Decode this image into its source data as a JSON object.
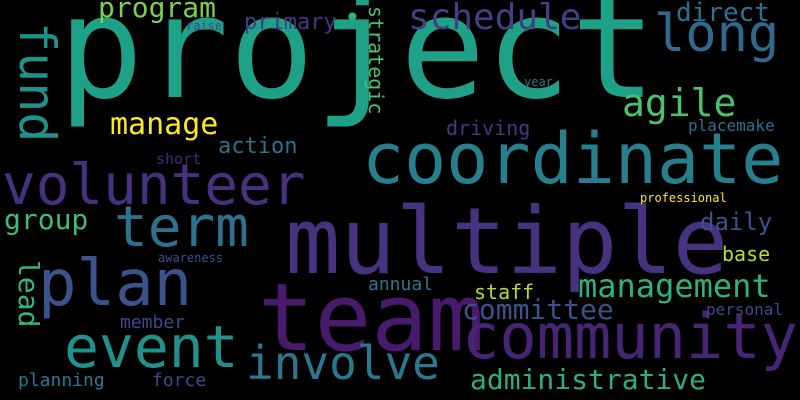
{
  "palette": {
    "background": "#000000",
    "teal": "#26a58a",
    "teal_dark": "#1f9488",
    "teal_blue": "#2a788e",
    "blue": "#30678d",
    "slate_blue": "#3a528b",
    "indigo": "#443983",
    "purple": "#482173",
    "deep_purple": "#440154",
    "green": "#35b779",
    "light_green": "#6ece58",
    "yellow_green": "#b5de2b",
    "yellow": "#fde725"
  },
  "words": [
    {
      "id": "project",
      "text": "project",
      "color": "#1fa187"
    },
    {
      "id": "multiple",
      "text": "multiple",
      "color": "#46327e"
    },
    {
      "id": "team",
      "text": "team",
      "color": "#481a6c"
    },
    {
      "id": "coordinate",
      "text": "coordinate",
      "color": "#277f8e"
    },
    {
      "id": "community",
      "text": "community",
      "color": "#482475"
    },
    {
      "id": "volunteer",
      "text": "volunteer",
      "color": "#46317e"
    },
    {
      "id": "plan",
      "text": "plan",
      "color": "#3b528b"
    },
    {
      "id": "term",
      "text": "term",
      "color": "#2c728e"
    },
    {
      "id": "event",
      "text": "event",
      "color": "#21918c"
    },
    {
      "id": "long",
      "text": "long",
      "color": "#31688e"
    },
    {
      "id": "fund",
      "text": "fund",
      "color": "#20928c"
    },
    {
      "id": "involve",
      "text": "involve",
      "color": "#2a788e"
    },
    {
      "id": "agile",
      "text": "agile",
      "color": "#4ac16d"
    },
    {
      "id": "schedule",
      "text": "schedule",
      "color": "#433e85"
    },
    {
      "id": "management",
      "text": "management",
      "color": "#2db27d"
    },
    {
      "id": "manage",
      "text": "manage",
      "color": "#fde725"
    },
    {
      "id": "administrative",
      "text": "administrative",
      "color": "#2ab07f"
    },
    {
      "id": "committee",
      "text": "committee",
      "color": "#3b528b"
    },
    {
      "id": "program",
      "text": "program",
      "color": "#7ad151"
    },
    {
      "id": "direct",
      "text": "direct",
      "color": "#2c728e"
    },
    {
      "id": "group",
      "text": "group",
      "color": "#3dbc74"
    },
    {
      "id": "daily",
      "text": "daily",
      "color": "#3b528b"
    },
    {
      "id": "lead",
      "text": "lead",
      "color": "#35b779"
    },
    {
      "id": "primary",
      "text": "primary",
      "color": "#443a83"
    },
    {
      "id": "strategic",
      "text": "strategic",
      "color": "#4ac16d"
    },
    {
      "id": "driving",
      "text": "driving",
      "color": "#453781"
    },
    {
      "id": "action",
      "text": "action",
      "color": "#2d708e"
    },
    {
      "id": "staff",
      "text": "staff",
      "color": "#b5de2b"
    },
    {
      "id": "base",
      "text": "base",
      "color": "#b5de2b"
    },
    {
      "id": "annual",
      "text": "annual",
      "color": "#2a788e"
    },
    {
      "id": "member",
      "text": "member",
      "color": "#3e4989"
    },
    {
      "id": "force",
      "text": "force",
      "color": "#3e4989"
    },
    {
      "id": "planning",
      "text": "planning",
      "color": "#2a788e"
    },
    {
      "id": "placemake",
      "text": "placemake",
      "color": "#2c728e"
    },
    {
      "id": "personal",
      "text": "personal",
      "color": "#3e4989"
    },
    {
      "id": "short",
      "text": "short",
      "color": "#482878"
    },
    {
      "id": "raise",
      "text": "raise",
      "color": "#3e4989"
    },
    {
      "id": "year",
      "text": "year",
      "color": "#2a788e"
    },
    {
      "id": "professional",
      "text": "professional",
      "color": "#fde725"
    },
    {
      "id": "awareness",
      "text": "awareness",
      "color": "#3b528b"
    },
    {
      "id": "dot",
      "text": "•",
      "color": "#2db27d"
    }
  ]
}
